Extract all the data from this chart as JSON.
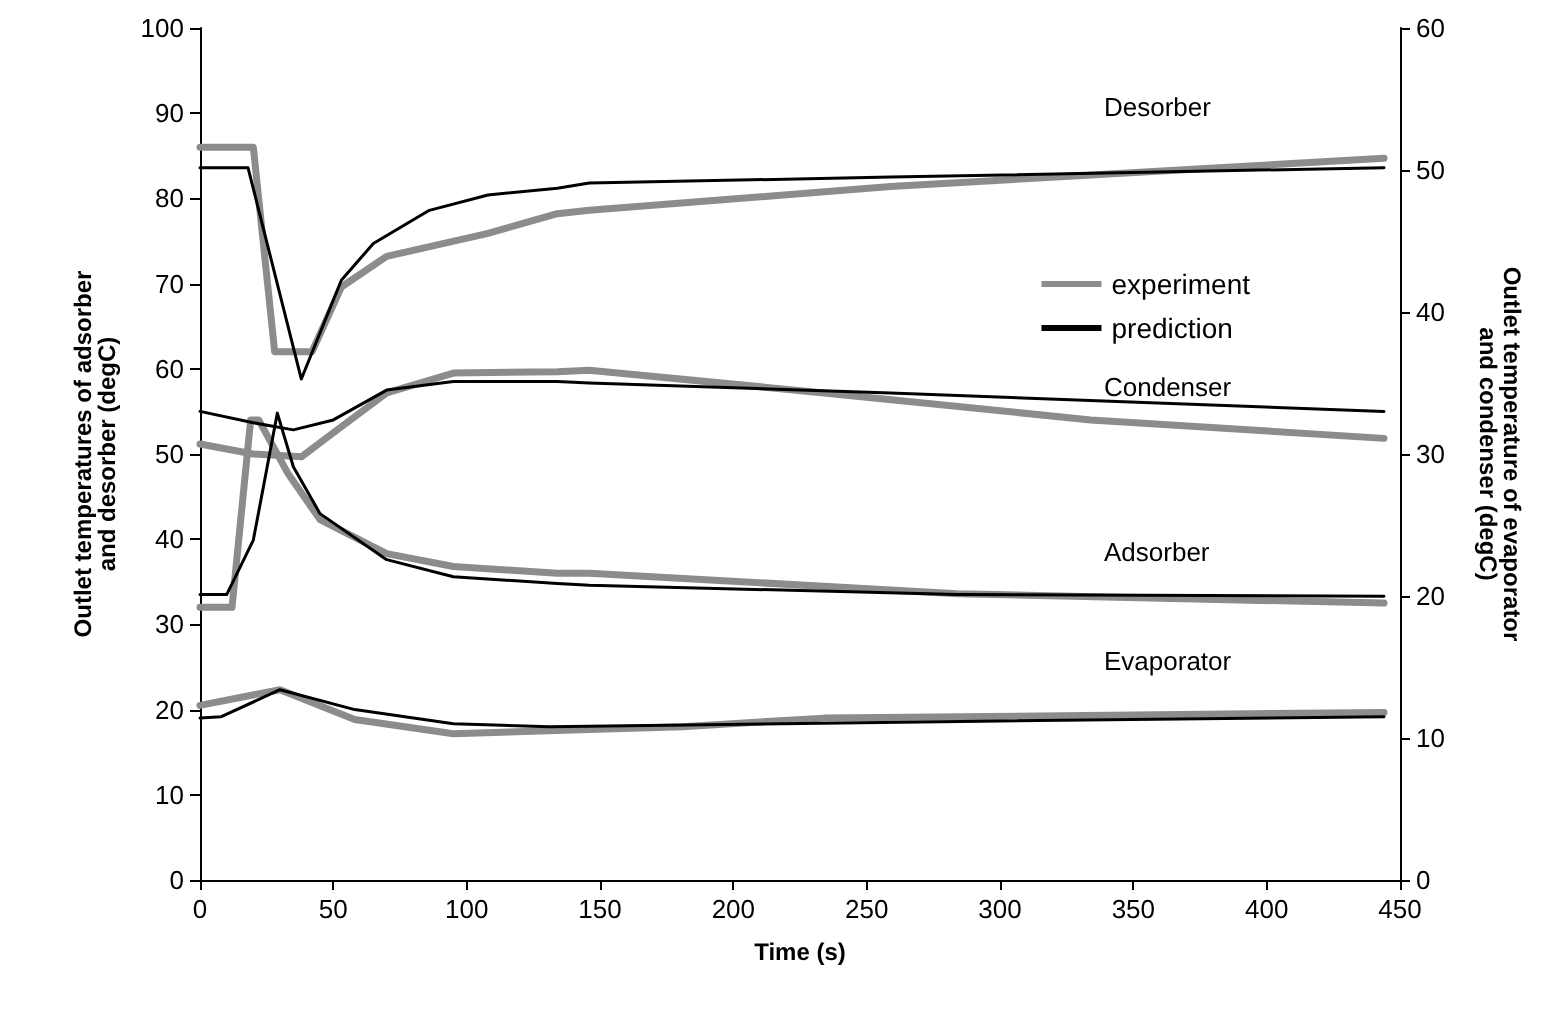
{
  "chart_data": {
    "type": "line",
    "xlabel": "Time (s)",
    "ylabel": "Outlet temperatures of adsorber and desorber (degC)",
    "y2label": "Outlet temperature of evaporator and condenser (degC)",
    "xlim": [
      0,
      450
    ],
    "xticks": [
      0,
      50,
      100,
      150,
      200,
      250,
      300,
      350,
      400,
      450
    ],
    "ylim": [
      0,
      100
    ],
    "yticks": [
      0,
      10,
      20,
      30,
      40,
      50,
      60,
      70,
      80,
      90,
      100
    ],
    "y2lim": [
      0,
      60
    ],
    "y2ticks": [
      0,
      10,
      20,
      30,
      40,
      50,
      60
    ],
    "grid": false,
    "legend": "right",
    "marker": "none",
    "line_style": "solid",
    "annotations": [
      "Desorber",
      "Condenser",
      "Adsorber",
      "Evaporator"
    ],
    "series": [
      {
        "name": "experiment",
        "color": "#8c8c8c",
        "x": [
          0,
          20,
          28,
          42,
          53,
          70,
          108,
          134,
          146,
          259,
          444
        ],
        "values": [
          86,
          86,
          62,
          62,
          69.6,
          73.2,
          75.9,
          78.2,
          78.6,
          81.4,
          84.7
        ]
      },
      {
        "color": "#8c8c8c",
        "axis": "y2",
        "x": [
          0,
          20,
          38,
          50,
          70,
          95,
          134,
          146,
          234,
          334,
          444
        ],
        "values": [
          30.7,
          30,
          29.8,
          31.5,
          34.3,
          35.7,
          35.8,
          35.9,
          34.3,
          32.4,
          31.1
        ]
      },
      {
        "color": "#8c8c8c",
        "x": [
          0,
          12,
          19,
          22,
          33,
          45,
          70,
          95,
          134,
          146,
          284,
          444
        ],
        "values": [
          32,
          32,
          54,
          54,
          47.7,
          42.3,
          38.3,
          36.8,
          36,
          36,
          33.6,
          32.5
        ]
      },
      {
        "color": "#8c8c8c",
        "axis": "y2",
        "x": [
          0,
          30,
          58,
          95,
          146,
          181,
          234,
          444
        ],
        "values": [
          12.3,
          13.4,
          11.3,
          10.3,
          10.6,
          10.8,
          11.4,
          11.8
        ]
      },
      {
        "name": "prediction",
        "color": "#000000",
        "x": [
          0,
          18,
          38,
          53,
          65,
          86,
          108,
          134,
          146,
          259,
          444
        ],
        "values": [
          83.6,
          83.6,
          58.8,
          70.4,
          74.7,
          78.6,
          80.4,
          81.2,
          81.8,
          82.5,
          83.6
        ]
      },
      {
        "color": "#000000",
        "axis": "y2",
        "x": [
          0,
          20,
          35,
          50,
          70,
          95,
          134,
          146,
          259,
          444
        ],
        "values": [
          33,
          32.2,
          31.7,
          32.4,
          34.5,
          35.1,
          35.1,
          35,
          34.3,
          33
        ]
      },
      {
        "color": "#000000",
        "x": [
          0,
          10,
          20,
          29,
          35,
          45,
          70,
          95,
          134,
          146,
          284,
          444
        ],
        "values": [
          33.5,
          33.5,
          39.9,
          54.8,
          48.5,
          43,
          37.6,
          35.6,
          34.8,
          34.6,
          33.5,
          33.3
        ]
      },
      {
        "color": "#000000",
        "axis": "y2",
        "x": [
          0,
          8,
          30,
          58,
          95,
          131,
          300,
          444
        ],
        "values": [
          11.4,
          11.5,
          13.4,
          12,
          11,
          10.8,
          11.2,
          11.5
        ]
      }
    ]
  }
}
